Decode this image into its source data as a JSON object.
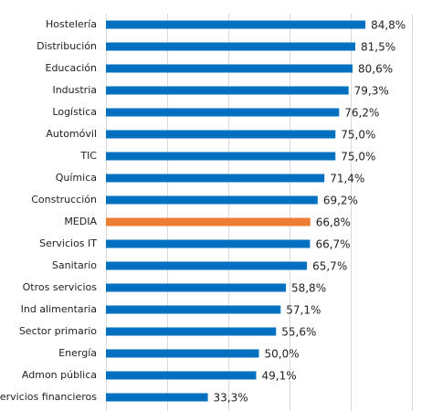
{
  "chart_data": {
    "type": "hbar",
    "categories": [
      "Hostelería",
      "Distribución",
      "Educación",
      "Industria",
      "Logística",
      "Automóvil",
      "TIC",
      "Química",
      "Construcción",
      "MEDIA",
      "Servicios IT",
      "Sanitario",
      "Otros servicios",
      "Ind alimentaria",
      "Sector primario",
      "Energía",
      "Admon pública",
      "Servicios financieros"
    ],
    "values": [
      84.8,
      81.5,
      80.6,
      79.3,
      76.2,
      75.0,
      75.0,
      71.4,
      69.2,
      66.8,
      66.7,
      65.7,
      58.8,
      57.1,
      55.6,
      50.0,
      49.1,
      33.3
    ],
    "value_labels": [
      "84,8%",
      "81,5%",
      "80,6%",
      "79,3%",
      "76,2%",
      "75,0%",
      "75,0%",
      "71,4%",
      "69,2%",
      "66,8%",
      "66,7%",
      "65,7%",
      "58,8%",
      "57,1%",
      "55,6%",
      "50,0%",
      "49,1%",
      "33,3%"
    ],
    "colors": [
      "#0070c0",
      "#0070c0",
      "#0070c0",
      "#0070c0",
      "#0070c0",
      "#0070c0",
      "#0070c0",
      "#0070c0",
      "#0070c0",
      "#ed7d31",
      "#0070c0",
      "#0070c0",
      "#0070c0",
      "#0070c0",
      "#0070c0",
      "#0070c0",
      "#0070c0",
      "#0070c0"
    ],
    "xlim": [
      0,
      100
    ],
    "xticks": [
      0,
      20,
      40,
      60,
      80,
      100
    ],
    "grid": true
  }
}
